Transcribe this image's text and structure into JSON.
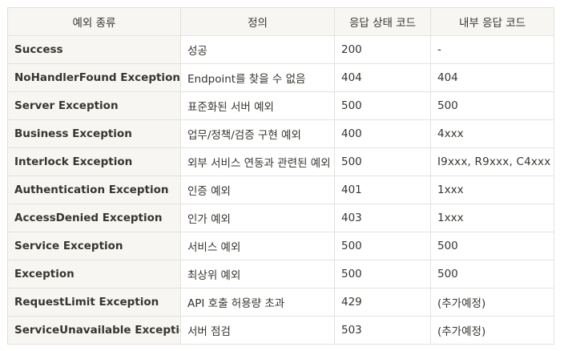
{
  "headers": [
    "예외 종류",
    "정의",
    "응답 상태 코드",
    "내부 응답 코드"
  ],
  "rows": [
    {
      "type": "Success",
      "definition": "성공",
      "status": "200",
      "internal": "-"
    },
    {
      "type": "NoHandlerFound Exception",
      "definition": "Endpoint를 찾을 수 없음",
      "status": "404",
      "internal": "404"
    },
    {
      "type": "Server Exception",
      "definition": "표준화된 서버 예외",
      "status": "500",
      "internal": "500"
    },
    {
      "type": "Business Exception",
      "definition": "업무/정책/검증 구현 예외",
      "status": "400",
      "internal": "4xxx"
    },
    {
      "type": "Interlock Exception",
      "definition": "외부 서비스 연동과 관련된 예외",
      "status": "500",
      "internal": "I9xxx, R9xxx, C4xxx"
    },
    {
      "type": "Authentication Exception",
      "definition": "인증 예외",
      "status": "401",
      "internal": "1xxx"
    },
    {
      "type": "AccessDenied Exception",
      "definition": "인가 예외",
      "status": "403",
      "internal": "1xxx"
    },
    {
      "type": "Service Exception",
      "definition": "서비스 예외",
      "status": "500",
      "internal": "500"
    },
    {
      "type": "Exception",
      "definition": "최상위 예외",
      "status": "500",
      "internal": "500"
    },
    {
      "type": "RequestLimit Exception",
      "definition": "API 호출 허용량 초과",
      "status": "429",
      "internal": "(추가예정)"
    },
    {
      "type": "ServiceUnavailable Exception",
      "definition": "서버 점검",
      "status": "503",
      "internal": "(추가예정)"
    }
  ]
}
